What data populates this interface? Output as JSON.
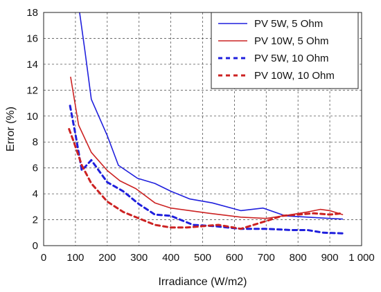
{
  "chart_data": {
    "type": "line",
    "xlabel": "Irradiance (W/m2)",
    "ylabel": "Error (%)",
    "xlim": [
      0,
      1000
    ],
    "ylim": [
      0,
      18
    ],
    "xticks": [
      0,
      100,
      200,
      300,
      400,
      500,
      600,
      700,
      800,
      900,
      1000
    ],
    "xtick_labels": [
      "0",
      "100",
      "200",
      "300",
      "400",
      "500",
      "600",
      "700",
      "800",
      "900",
      "1 000"
    ],
    "yticks": [
      0,
      2,
      4,
      6,
      8,
      10,
      12,
      14,
      16,
      18
    ],
    "ytick_labels": [
      "0",
      "2",
      "4",
      "6",
      "8",
      "10",
      "12",
      "14",
      "16",
      "18"
    ],
    "grid": true,
    "legend_position": "top-right",
    "series": [
      {
        "name": "PV 5W, 5 Ohm",
        "color": "#1f1fdd",
        "style": "solid",
        "x": [
          113,
          130,
          150,
          200,
          235,
          295,
          350,
          400,
          460,
          530,
          620,
          690,
          760,
          830,
          900,
          940
        ],
        "y": [
          18,
          15,
          11.3,
          8.5,
          6.2,
          5.2,
          4.8,
          4.2,
          3.6,
          3.3,
          2.7,
          2.9,
          2.3,
          2.2,
          2.1,
          2.05
        ]
      },
      {
        "name": "PV 10W, 5 Ohm",
        "color": "#cc2222",
        "style": "solid",
        "x": [
          85,
          110,
          150,
          200,
          240,
          290,
          350,
          400,
          460,
          520,
          620,
          700,
          780,
          830,
          870,
          900,
          940
        ],
        "y": [
          13,
          9.3,
          7.2,
          5.8,
          5.0,
          4.4,
          3.3,
          2.9,
          2.7,
          2.5,
          2.2,
          2.1,
          2.4,
          2.6,
          2.8,
          2.7,
          2.4
        ]
      },
      {
        "name": "PV 5W, 10 Ohm",
        "color": "#1f1fdd",
        "style": "dashed",
        "x": [
          83,
          100,
          120,
          150,
          200,
          250,
          300,
          350,
          400,
          470,
          540,
          620,
          700,
          780,
          830,
          880,
          940
        ],
        "y": [
          10.8,
          8.6,
          5.8,
          6.6,
          4.9,
          4.2,
          3.2,
          2.4,
          2.3,
          1.6,
          1.5,
          1.3,
          1.3,
          1.2,
          1.2,
          1.0,
          0.95
        ]
      },
      {
        "name": "PV 10W, 10 Ohm",
        "color": "#cc2222",
        "style": "dashed",
        "x": [
          80,
          95,
          120,
          150,
          200,
          250,
          300,
          350,
          400,
          450,
          500,
          550,
          620,
          700,
          750,
          800,
          850,
          900,
          940
        ],
        "y": [
          9.0,
          8.0,
          6.2,
          4.8,
          3.4,
          2.6,
          2.1,
          1.6,
          1.4,
          1.4,
          1.5,
          1.6,
          1.3,
          1.9,
          2.3,
          2.4,
          2.5,
          2.4,
          2.5
        ]
      }
    ]
  }
}
